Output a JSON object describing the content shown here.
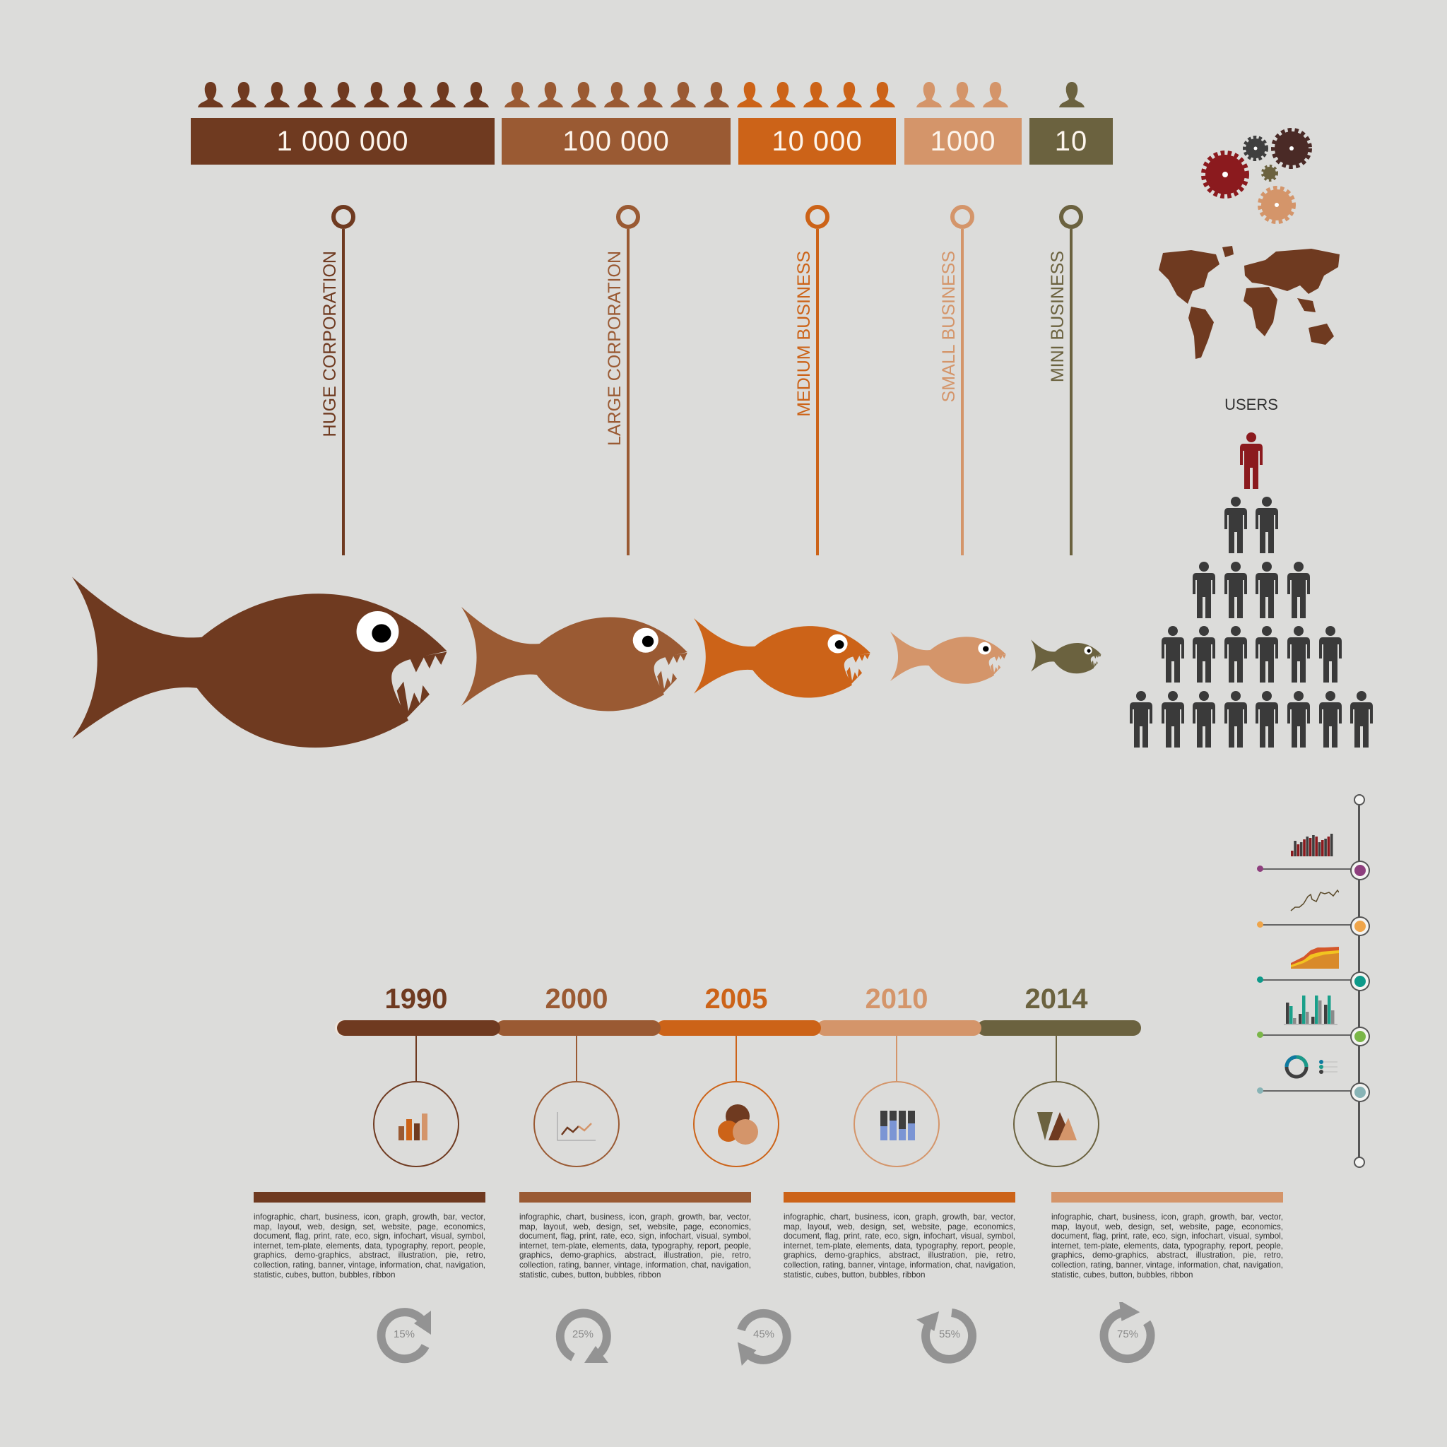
{
  "colors": {
    "background": "#dcdcda",
    "huge": "#6f3a20",
    "large": "#9a5a33",
    "medium": "#cc6318",
    "small": "#d4956a",
    "mini": "#6b623f",
    "users_top": "#8b1a1e",
    "users": "#3a3a3a",
    "arrows": "#939393"
  },
  "segments": [
    {
      "value": "1 000 000",
      "label": "HUGE CORPORATION",
      "color": "#6f3a20",
      "people": 9
    },
    {
      "value": "100 000",
      "label": "LARGE CORPORATION",
      "color": "#9a5a33",
      "people": 7
    },
    {
      "value": "10 000",
      "label": "MEDIUM BUSINESS",
      "color": "#cc6318",
      "people": 5
    },
    {
      "value": "1000",
      "label": "SMALL BUSINESS",
      "color": "#d4956a",
      "people": 3
    },
    {
      "value": "10",
      "label": "MINI BUSINESS",
      "color": "#6b623f",
      "people": 1
    }
  ],
  "users": {
    "label": "USERS",
    "rows": [
      1,
      2,
      4,
      6,
      8
    ]
  },
  "timeline": [
    {
      "year": "1990",
      "color": "#6f3a20",
      "icon": "bar-chart-icon"
    },
    {
      "year": "2000",
      "color": "#9a5a33",
      "icon": "line-chart-icon"
    },
    {
      "year": "2005",
      "color": "#cc6318",
      "icon": "bubbles-icon"
    },
    {
      "year": "2010",
      "color": "#d4956a",
      "icon": "stacked-bars-icon"
    },
    {
      "year": "2014",
      "color": "#6b623f",
      "icon": "triangles-icon"
    }
  ],
  "sections": [
    {
      "color": "#6f3a20",
      "text": "infographic, chart, business, icon, graph, growth, bar, vector, map, layout, web, design, set, website, page, economics, document, flag, print, rate, eco, sign, infochart, visual, symbol, internet, tem-plate, elements, data, typography, report, people, graphics, demo-graphics, abstract, illustration, pie, retro, collection, rating, banner, vintage, information, chat, navigation, statistic, cubes, button, bubbles, ribbon"
    },
    {
      "color": "#9a5a33",
      "text": "infographic, chart, business, icon, graph, growth, bar, vector, map, layout, web, design, set, website, page, economics, document, flag, print, rate, eco, sign, infochart, visual, symbol, internet, tem-plate, elements, data, typography, report, people, graphics, demo-graphics, abstract, illustration, pie, retro, collection, rating, banner, vintage, information, chat, navigation, statistic, cubes, button, bubbles, ribbon"
    },
    {
      "color": "#cc6318",
      "text": "infographic, chart, business, icon, graph, growth, bar, vector, map, layout, web, design, set, website, page, economics, document, flag, print, rate, eco, sign, infochart, visual, symbol, internet, tem-plate, elements, data, typography, report, people, graphics, demo-graphics, abstract, illustration, pie, retro, collection, rating, banner, vintage, information, chat, navigation, statistic, cubes, button, bubbles, ribbon"
    },
    {
      "color": "#d4956a",
      "text": "infographic, chart, business, icon, graph, growth, bar, vector, map, layout, web, design, set, website, page, economics, document, flag, print, rate, eco, sign, infochart, visual, symbol, internet, tem-plate, elements, data, typography, report, people, graphics, demo-graphics, abstract, illustration, pie, retro, collection, rating, banner, vintage, information, chat, navigation, statistic, cubes, button, bubbles, ribbon"
    }
  ],
  "percentages": [
    "15%",
    "25%",
    "45%",
    "55%",
    "75%"
  ],
  "right_timeline": [
    {
      "dot": "#8e3f7e",
      "chart": "bar"
    },
    {
      "dot": "#efa54a",
      "chart": "line"
    },
    {
      "dot": "#0e9a8a",
      "chart": "area"
    },
    {
      "dot": "#7ab648",
      "chart": "grouped-bar"
    },
    {
      "dot": "#88b4b6",
      "chart": "donut"
    }
  ]
}
